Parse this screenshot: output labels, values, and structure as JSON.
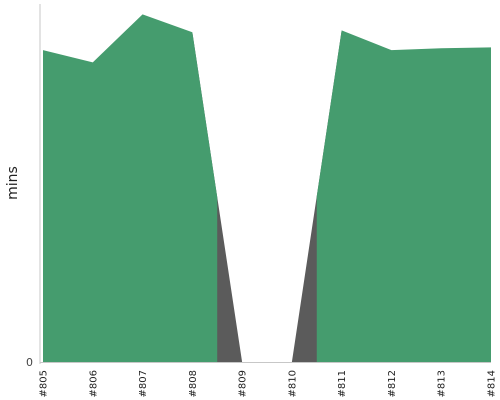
{
  "chart_data": {
    "type": "area",
    "title": "",
    "xlabel": "",
    "ylabel": "mins",
    "categories": [
      "#805",
      "#806",
      "#807",
      "#808",
      "#809",
      "#810",
      "#811",
      "#812",
      "#813",
      "#814"
    ],
    "series": [
      {
        "color": "#459c6e",
        "values": [
          33.1,
          31.8,
          36.9,
          35.0,
          0,
          0,
          35.2,
          33.1,
          33.3,
          33.4
        ]
      },
      {
        "color": "#5b5b5b",
        "values": [
          null,
          null,
          null,
          0,
          0,
          0,
          0,
          null,
          null,
          null
        ]
      }
    ],
    "y_ticks": [
      0
    ],
    "y_tick_labels": [
      "0"
    ],
    "ylim": [
      0,
      38
    ],
    "grid": false,
    "legend": "none"
  }
}
